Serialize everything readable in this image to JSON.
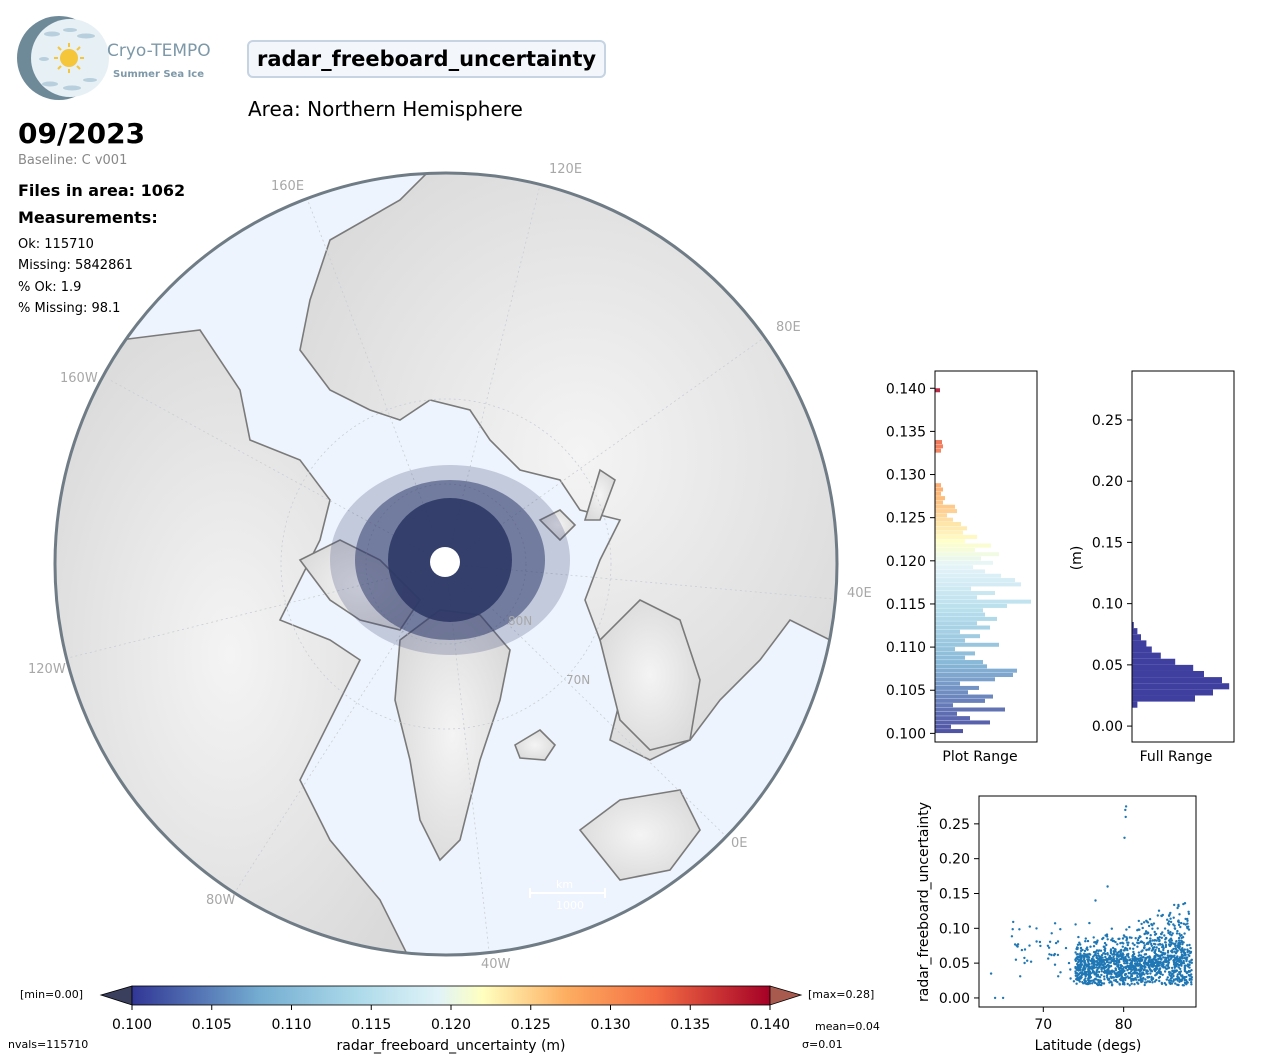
{
  "header": {
    "logo_name": "Cryo-TEMPO",
    "logo_subtitle": "Summer Sea Ice",
    "title": "radar_freeboard_uncertainty",
    "area": "Area: Northern Hemisphere",
    "date": "09/2023",
    "baseline": "Baseline: C v001",
    "files": "Files in area: 1062",
    "measurements_heading": "Measurements:"
  },
  "stats": {
    "ok": "Ok: 115710",
    "missing": "Missing: 5842861",
    "pct_ok": "% Ok: 1.9",
    "pct_missing": "% Missing: 98.1"
  },
  "map": {
    "lon_labels": [
      "120E",
      "160E",
      "80E",
      "160W",
      "40E",
      "120W",
      "0E",
      "80W",
      "40W"
    ],
    "lat_labels": [
      "80N",
      "70N"
    ],
    "scale_label": "km",
    "scale_value": "1000"
  },
  "colorbar": {
    "label": "radar_freeboard_uncertainty (m)",
    "ticks": [
      "0.100",
      "0.105",
      "0.110",
      "0.115",
      "0.120",
      "0.125",
      "0.130",
      "0.135",
      "0.140"
    ],
    "min_label": "[min=0.00]",
    "max_label": "[max=0.28]",
    "nvals": "nvals=115710",
    "mean": "mean=0.04",
    "sigma": "σ=0.01"
  },
  "chart_data": [
    {
      "type": "bar",
      "orientation": "horizontal",
      "xlabel": "Plot Range",
      "ylim": [
        0.099,
        0.142
      ],
      "yticks": [
        "0.100",
        "0.105",
        "0.110",
        "0.115",
        "0.120",
        "0.125",
        "0.130",
        "0.135",
        "0.140"
      ],
      "bins": [
        0.1,
        0.1005,
        0.101,
        0.1015,
        0.102,
        0.1025,
        0.103,
        0.1035,
        0.104,
        0.1045,
        0.105,
        0.1055,
        0.106,
        0.1065,
        0.107,
        0.1075,
        0.108,
        0.1085,
        0.109,
        0.1095,
        0.11,
        0.1105,
        0.111,
        0.1115,
        0.112,
        0.1125,
        0.113,
        0.1135,
        0.114,
        0.1145,
        0.115,
        0.1155,
        0.116,
        0.1165,
        0.117,
        0.1175,
        0.118,
        0.1185,
        0.119,
        0.1195,
        0.12,
        0.1205,
        0.121,
        0.1215,
        0.122,
        0.1225,
        0.123,
        0.1235,
        0.124,
        0.1245,
        0.125,
        0.1255,
        0.126,
        0.1265,
        0.127,
        0.1275,
        0.128,
        0.1285,
        0.1325,
        0.133,
        0.1335,
        0.1395
      ],
      "values": [
        28,
        16,
        55,
        35,
        22,
        70,
        18,
        50,
        58,
        33,
        44,
        25,
        60,
        78,
        82,
        52,
        48,
        30,
        40,
        20,
        64,
        30,
        45,
        25,
        55,
        42,
        62,
        50,
        48,
        72,
        96,
        42,
        60,
        36,
        86,
        80,
        66,
        50,
        38,
        58,
        46,
        64,
        40,
        56,
        30,
        42,
        28,
        32,
        26,
        18,
        12,
        22,
        20,
        8,
        10,
        6,
        8,
        6,
        6,
        8,
        7,
        5
      ]
    },
    {
      "type": "bar",
      "orientation": "horizontal",
      "xlabel": "Full Range",
      "ylabel": "(m)",
      "ylim": [
        -0.013,
        0.29
      ],
      "yticks": [
        "0.00",
        "0.05",
        "0.10",
        "0.15",
        "0.20",
        "0.25"
      ],
      "bins": [
        0.015,
        0.02,
        0.025,
        0.03,
        0.035,
        0.04,
        0.045,
        0.05,
        0.055,
        0.06,
        0.065,
        0.07,
        0.075,
        0.08
      ],
      "values": [
        3,
        35,
        45,
        54,
        50,
        40,
        34,
        24,
        16,
        11,
        8,
        5,
        3,
        1
      ]
    },
    {
      "type": "scatter",
      "xlabel": "Latitude (degs)",
      "ylabel": "radar_freeboard_uncertainty",
      "xlim": [
        62,
        89
      ],
      "ylim": [
        -0.013,
        0.29
      ],
      "xticks": [
        "70",
        "80"
      ],
      "yticks": [
        "0.00",
        "0.05",
        "0.10",
        "0.15",
        "0.20",
        "0.25"
      ],
      "color": "#1f77b4"
    }
  ]
}
